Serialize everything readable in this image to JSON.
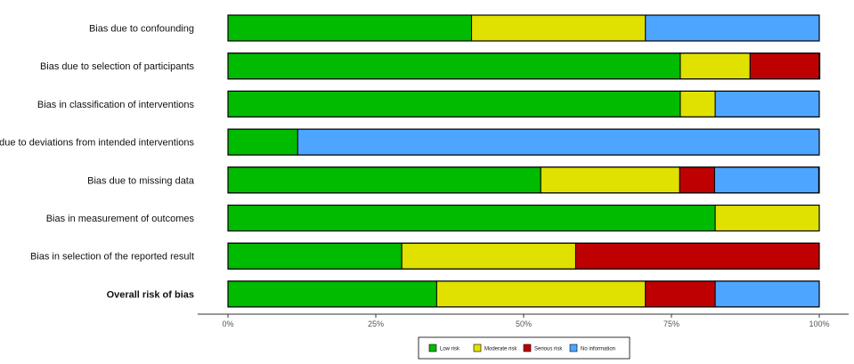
{
  "chart_data": {
    "type": "bar",
    "orientation": "horizontal",
    "stacked": true,
    "title": "",
    "xlabel": "",
    "ylabel": "",
    "xlim": [
      0,
      100
    ],
    "x_ticks": [
      "0%",
      "25%",
      "50%",
      "75%",
      "100%"
    ],
    "grid": false,
    "legend_position": "bottom",
    "categories": [
      "Bias due to confounding",
      "Bias due to selection of participants",
      "Bias in classification of interventions",
      "Bias due to deviations from intended interventions",
      "Bias due to missing data",
      "Bias in measurement of outcomes",
      "Bias in selection of the reported result",
      "Overall risk of bias"
    ],
    "bold_categories": [
      "Overall risk of bias"
    ],
    "series": [
      {
        "name": "Low risk",
        "color": "#00bb00",
        "values": [
          41.2,
          76.5,
          76.5,
          11.8,
          52.9,
          82.4,
          29.4,
          35.3
        ]
      },
      {
        "name": "Moderate risk",
        "color": "#e1e100",
        "values": [
          29.4,
          11.8,
          5.9,
          0,
          23.5,
          17.6,
          29.4,
          35.3
        ]
      },
      {
        "name": "Serious risk",
        "color": "#bf0000",
        "values": [
          0,
          11.8,
          0,
          0,
          5.9,
          0,
          41.2,
          11.8
        ]
      },
      {
        "name": "No information",
        "color": "#4ea5ff",
        "values": [
          29.4,
          0,
          17.6,
          88.2,
          17.6,
          0,
          0,
          17.6
        ]
      }
    ]
  }
}
